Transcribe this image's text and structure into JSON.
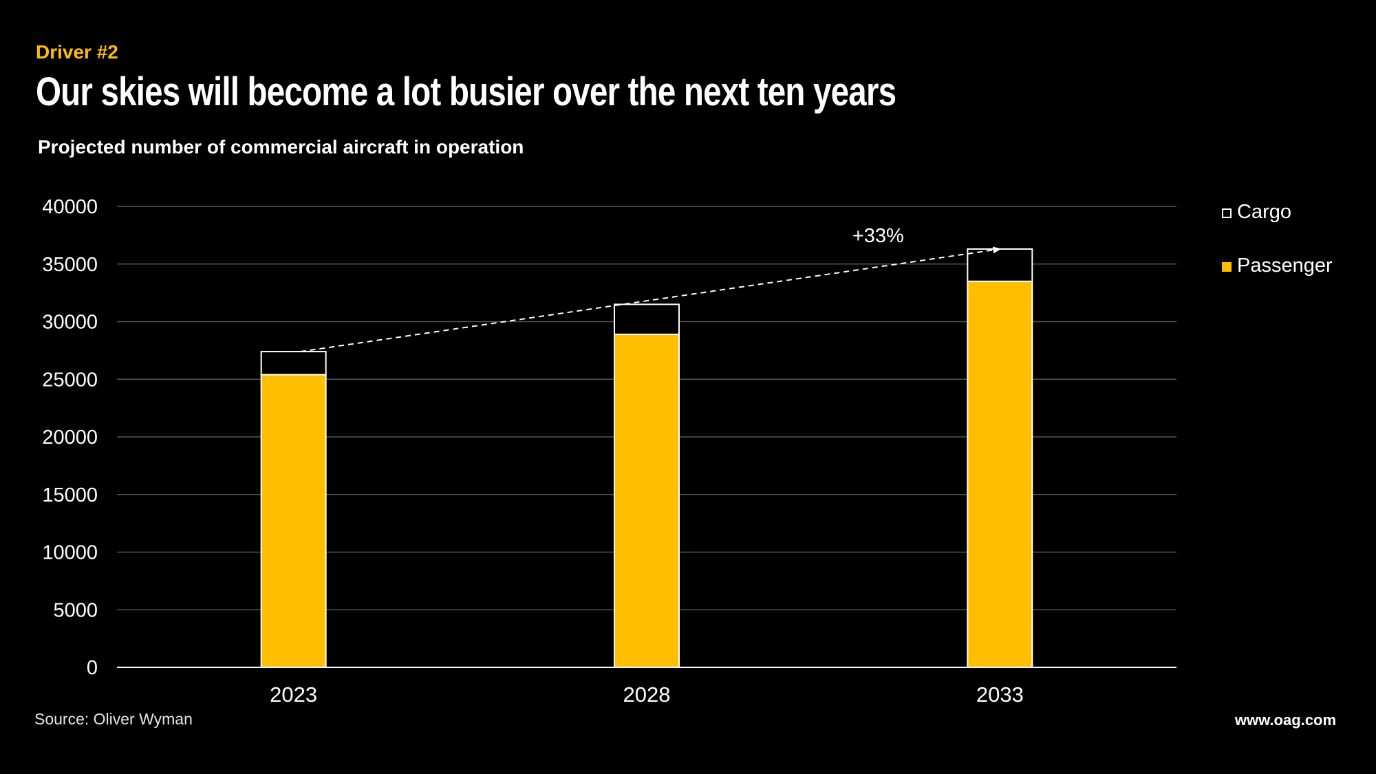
{
  "header": {
    "eyebrow": "Driver #2",
    "title": "Our skies will become a lot busier over the next ten years",
    "subtitle": "Projected number of commercial aircraft in operation"
  },
  "footer": {
    "source": "Source: Oliver Wyman",
    "site": "www.oag.com"
  },
  "colors": {
    "background": "#000000",
    "passenger": "#FFBF00",
    "cargo": "#000000",
    "outline": "#ffffff",
    "grid": "#555555"
  },
  "chart_data": {
    "type": "bar",
    "stacked": true,
    "categories": [
      "2023",
      "2028",
      "2033"
    ],
    "series": [
      {
        "name": "Passenger",
        "values": [
          25400,
          28900,
          33500
        ]
      },
      {
        "name": "Cargo",
        "values": [
          2000,
          2600,
          2800
        ]
      }
    ],
    "ylim": [
      0,
      40000
    ],
    "yticks": [
      "0",
      "5000",
      "10000",
      "15000",
      "20000",
      "25000",
      "30000",
      "35000",
      "40000"
    ],
    "grid": true,
    "legend_position": "right",
    "legend": [
      {
        "name": "Cargo",
        "swatch": "cargo"
      },
      {
        "name": "Passenger",
        "swatch": "passenger"
      }
    ],
    "annotation": {
      "text": "+33%",
      "from_category": "2023",
      "to_category": "2033"
    }
  }
}
